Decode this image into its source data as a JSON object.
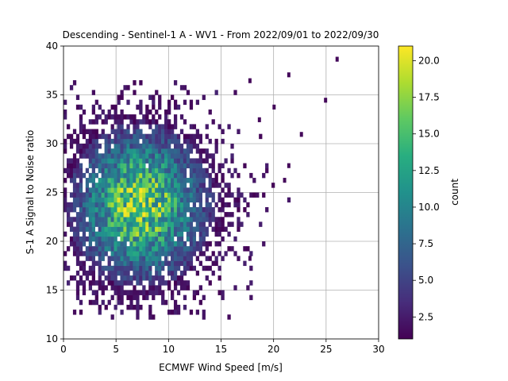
{
  "chart_data": {
    "type": "heatmap",
    "title": "Descending - Sentinel-1 A - WV1 - From 2022/09/01 to 2022/09/30",
    "xlabel": "ECMWF Wind Speed [m/s]",
    "ylabel": "S-1 A Signal to Noise ratio",
    "xlim": [
      0,
      30
    ],
    "ylim": [
      10,
      40
    ],
    "xticks": [
      "0",
      "5",
      "10",
      "15",
      "20",
      "25",
      "30"
    ],
    "yticks": [
      "10",
      "15",
      "20",
      "25",
      "30",
      "35",
      "40"
    ],
    "grid": true,
    "colormap": "viridis",
    "colorbar": {
      "label": "count",
      "range": [
        1,
        21
      ],
      "ticks": [
        "2.5",
        "5.0",
        "7.5",
        "10.0",
        "12.5",
        "15.0",
        "17.5",
        "20.0"
      ]
    },
    "density_model": {
      "description": "2D histogram of counts; dense core near wind 7 m/s, SNR 23",
      "center_x": 7.2,
      "center_y": 23.5,
      "spread_x": 3.6,
      "spread_y": 4.6,
      "peak_count": 20,
      "outliers": [
        [
          25.9,
          38.4
        ],
        [
          21.3,
          36.8
        ],
        [
          24.8,
          34.2
        ],
        [
          22.5,
          30.7
        ],
        [
          19.9,
          33.5
        ],
        [
          18.5,
          32.2
        ],
        [
          17.6,
          36.2
        ],
        [
          20.9,
          26.0
        ],
        [
          21.3,
          27.5
        ],
        [
          17.6,
          18.0
        ]
      ]
    }
  }
}
